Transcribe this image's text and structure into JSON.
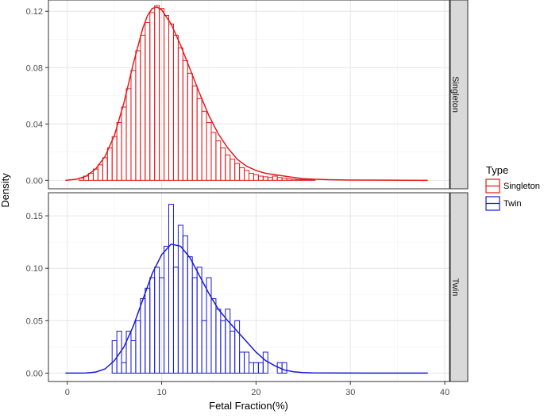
{
  "chart_data": {
    "type": "histogram-density",
    "xlabel": "Fetal Fraction(%)",
    "ylabel": "Density",
    "xlim": [
      -2,
      40.5
    ],
    "x_ticks": [
      0,
      10,
      20,
      30,
      40
    ],
    "grid": true,
    "legend": {
      "title": "Type",
      "placement": "right",
      "entries": [
        "Singleton",
        "Twin"
      ]
    },
    "bin_width": 0.5,
    "panels": [
      {
        "strip_label": "Singleton",
        "color": "#e41a1c",
        "ylim": [
          -0.006,
          0.128
        ],
        "y_ticks": [
          0,
          0.04,
          0.08,
          0.12
        ],
        "y_tick_labels": [
          "0.00",
          "0.04",
          "0.08",
          "0.12"
        ],
        "bins": [
          {
            "x": 1.5,
            "y": 0.0015
          },
          {
            "x": 2.0,
            "y": 0.003
          },
          {
            "x": 2.5,
            "y": 0.005
          },
          {
            "x": 3.0,
            "y": 0.008
          },
          {
            "x": 3.5,
            "y": 0.011
          },
          {
            "x": 4.0,
            "y": 0.016
          },
          {
            "x": 4.5,
            "y": 0.023
          },
          {
            "x": 5.0,
            "y": 0.031
          },
          {
            "x": 5.5,
            "y": 0.041
          },
          {
            "x": 6.0,
            "y": 0.052
          },
          {
            "x": 6.5,
            "y": 0.065
          },
          {
            "x": 7.0,
            "y": 0.078
          },
          {
            "x": 7.5,
            "y": 0.092
          },
          {
            "x": 8.0,
            "y": 0.103
          },
          {
            "x": 8.5,
            "y": 0.112
          },
          {
            "x": 9.0,
            "y": 0.119
          },
          {
            "x": 9.5,
            "y": 0.124
          },
          {
            "x": 10.0,
            "y": 0.122
          },
          {
            "x": 10.5,
            "y": 0.117
          },
          {
            "x": 11.0,
            "y": 0.111
          },
          {
            "x": 11.5,
            "y": 0.103
          },
          {
            "x": 12.0,
            "y": 0.094
          },
          {
            "x": 12.5,
            "y": 0.085
          },
          {
            "x": 13.0,
            "y": 0.076
          },
          {
            "x": 13.5,
            "y": 0.067
          },
          {
            "x": 14.0,
            "y": 0.058
          },
          {
            "x": 14.5,
            "y": 0.049
          },
          {
            "x": 15.0,
            "y": 0.041
          },
          {
            "x": 15.5,
            "y": 0.034
          },
          {
            "x": 16.0,
            "y": 0.028
          },
          {
            "x": 16.5,
            "y": 0.023
          },
          {
            "x": 17.0,
            "y": 0.018
          },
          {
            "x": 17.5,
            "y": 0.015
          },
          {
            "x": 18.0,
            "y": 0.012
          },
          {
            "x": 18.5,
            "y": 0.009
          },
          {
            "x": 19.0,
            "y": 0.007
          },
          {
            "x": 19.5,
            "y": 0.005
          },
          {
            "x": 20.0,
            "y": 0.004
          },
          {
            "x": 20.5,
            "y": 0.003
          },
          {
            "x": 21.0,
            "y": 0.0025
          },
          {
            "x": 21.5,
            "y": 0.002
          },
          {
            "x": 22.0,
            "y": 0.003
          },
          {
            "x": 22.5,
            "y": 0.002
          },
          {
            "x": 23.0,
            "y": 0.0015
          },
          {
            "x": 23.5,
            "y": 0.001
          },
          {
            "x": 24.0,
            "y": 0.0008
          },
          {
            "x": 24.5,
            "y": 0.0006
          },
          {
            "x": 25.0,
            "y": 0.0005
          },
          {
            "x": 25.5,
            "y": 0.0004
          },
          {
            "x": 26.0,
            "y": 0.0003
          }
        ],
        "density_x": [
          -0.2,
          1,
          2,
          3,
          4,
          5,
          6,
          7,
          8,
          8.5,
          9,
          9.5,
          10,
          11,
          12,
          13,
          14,
          15,
          16,
          17,
          18,
          19,
          20,
          21,
          22,
          23,
          24,
          25,
          26,
          28,
          30,
          34,
          38.2
        ],
        "density_y": [
          0,
          0.0008,
          0.003,
          0.008,
          0.017,
          0.032,
          0.055,
          0.083,
          0.108,
          0.117,
          0.122,
          0.123,
          0.121,
          0.111,
          0.096,
          0.079,
          0.062,
          0.046,
          0.033,
          0.023,
          0.015,
          0.01,
          0.007,
          0.005,
          0.004,
          0.003,
          0.002,
          0.0012,
          0.0008,
          0.0004,
          0.0002,
          0.0001,
          0
        ]
      },
      {
        "strip_label": "Twin",
        "color": "#1a1ad6",
        "ylim": [
          -0.008,
          0.172
        ],
        "y_ticks": [
          0,
          0.05,
          0.1,
          0.15
        ],
        "y_tick_labels": [
          "0.00",
          "0.05",
          "0.10",
          "0.15"
        ],
        "bins": [
          {
            "x": 5.0,
            "y": 0.031
          },
          {
            "x": 5.5,
            "y": 0.04
          },
          {
            "x": 6.0,
            "y": 0.01
          },
          {
            "x": 6.5,
            "y": 0.04
          },
          {
            "x": 7.0,
            "y": 0.031
          },
          {
            "x": 7.5,
            "y": 0.05
          },
          {
            "x": 8.0,
            "y": 0.071
          },
          {
            "x": 8.5,
            "y": 0.081
          },
          {
            "x": 9.0,
            "y": 0.091
          },
          {
            "x": 9.5,
            "y": 0.101
          },
          {
            "x": 10.0,
            "y": 0.091
          },
          {
            "x": 10.5,
            "y": 0.121
          },
          {
            "x": 11.0,
            "y": 0.161
          },
          {
            "x": 11.5,
            "y": 0.101
          },
          {
            "x": 12.0,
            "y": 0.141
          },
          {
            "x": 12.5,
            "y": 0.131
          },
          {
            "x": 13.0,
            "y": 0.111
          },
          {
            "x": 13.5,
            "y": 0.091
          },
          {
            "x": 14.0,
            "y": 0.101
          },
          {
            "x": 14.5,
            "y": 0.05
          },
          {
            "x": 15.0,
            "y": 0.091
          },
          {
            "x": 15.5,
            "y": 0.071
          },
          {
            "x": 16.0,
            "y": 0.061
          },
          {
            "x": 16.5,
            "y": 0.05
          },
          {
            "x": 17.0,
            "y": 0.061
          },
          {
            "x": 17.5,
            "y": 0.04
          },
          {
            "x": 18.0,
            "y": 0.05
          },
          {
            "x": 18.5,
            "y": 0.02
          },
          {
            "x": 19.0,
            "y": 0.02
          },
          {
            "x": 19.5,
            "y": 0.01
          },
          {
            "x": 20.0,
            "y": 0.01
          },
          {
            "x": 20.5,
            "y": 0.01
          },
          {
            "x": 21.0,
            "y": 0.02
          },
          {
            "x": 22.5,
            "y": 0.01
          },
          {
            "x": 23.0,
            "y": 0.01
          }
        ],
        "density_x": [
          -0.2,
          2,
          3,
          4,
          5,
          6,
          7,
          8,
          9,
          10,
          11,
          12,
          13,
          14,
          15,
          16,
          17,
          18,
          19,
          20,
          21,
          22,
          23,
          24,
          25,
          26,
          28,
          32,
          38.2
        ],
        "density_y": [
          0,
          0.0001,
          0.001,
          0.004,
          0.012,
          0.025,
          0.045,
          0.07,
          0.095,
          0.113,
          0.123,
          0.121,
          0.11,
          0.093,
          0.076,
          0.061,
          0.05,
          0.04,
          0.03,
          0.02,
          0.012,
          0.007,
          0.003,
          0.0013,
          0.0005,
          0.0002,
          0.0001,
          0,
          0
        ]
      }
    ]
  }
}
